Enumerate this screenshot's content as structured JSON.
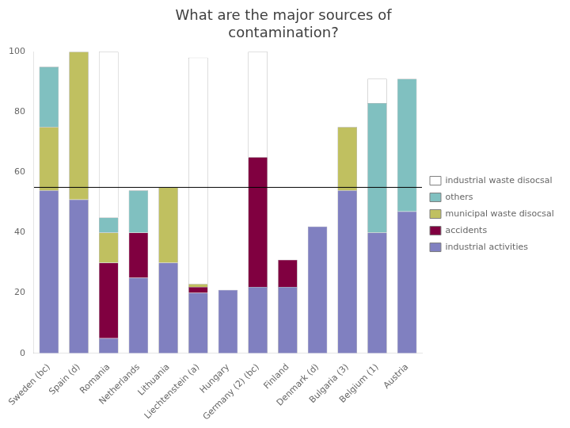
{
  "chart_data": {
    "type": "bar",
    "title": "What are the major sources of\ncontamination?",
    "categories": [
      "Sweden (bc)",
      "Spain (d)",
      "Romania",
      "Netherlands",
      "Lithuania",
      "Liechtenstein (a)",
      "Hungary",
      "Germany (2) (bc)",
      "Finland",
      "Denmark (d)",
      "Bulgaria (3)",
      "Belgium (1)",
      "Austria"
    ],
    "series": [
      {
        "name": "industrial activities",
        "color": "#8080c0",
        "values": [
          54,
          51,
          5,
          25,
          30,
          20,
          21,
          22,
          22,
          42,
          54,
          40,
          47
        ]
      },
      {
        "name": "accidents",
        "color": "#800040",
        "values": [
          0,
          0,
          25,
          15,
          0,
          2,
          0,
          43,
          9,
          0,
          0,
          0,
          0
        ]
      },
      {
        "name": "municipal waste disocsal",
        "color": "#c0c060",
        "values": [
          21,
          49,
          10,
          0,
          25,
          1,
          0,
          0,
          0,
          0,
          21,
          0,
          0
        ]
      },
      {
        "name": "others",
        "color": "#80c0c0",
        "values": [
          20,
          0,
          5,
          14,
          0,
          0,
          0,
          0,
          0,
          0,
          0,
          43,
          44
        ]
      },
      {
        "name": "industrial waste disocsal",
        "color": "#ffffff",
        "values": [
          0,
          0,
          55,
          0,
          0,
          75,
          0,
          35,
          0,
          0,
          0,
          8,
          0
        ]
      }
    ],
    "stacked": true,
    "ylim": [
      0,
      100
    ],
    "yticks": [
      0,
      20,
      40,
      60,
      80,
      100
    ],
    "grid": false,
    "legend": "right",
    "reference_line": 55
  }
}
